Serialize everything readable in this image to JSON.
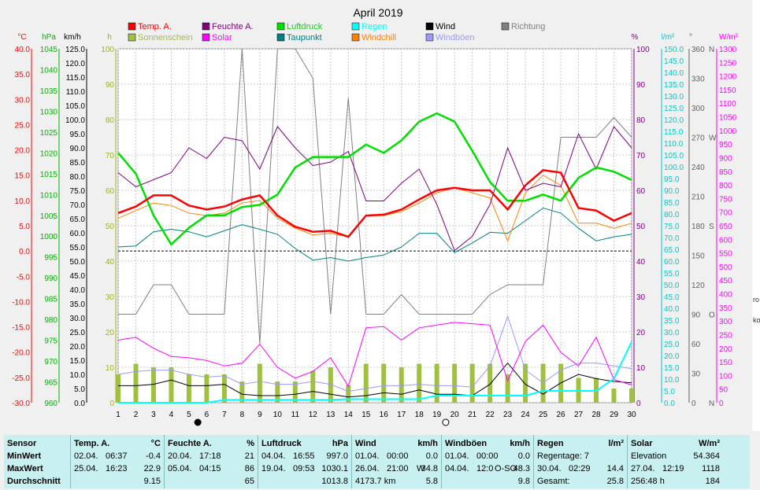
{
  "chart_data": {
    "type": "line",
    "title": "April 2019",
    "x": [
      1,
      2,
      3,
      4,
      5,
      6,
      7,
      8,
      9,
      10,
      11,
      12,
      13,
      14,
      15,
      16,
      17,
      18,
      19,
      20,
      21,
      22,
      23,
      24,
      25,
      26,
      27,
      28,
      29,
      30
    ],
    "xticks": [
      "1",
      "2",
      "3",
      "4",
      "5",
      "6",
      "7",
      "8",
      "9",
      "10",
      "11",
      "12",
      "13",
      "14",
      "15",
      "16",
      "17",
      "18",
      "19",
      "20",
      "21",
      "22",
      "23",
      "24",
      "25",
      "26",
      "27",
      "28",
      "29",
      "30"
    ],
    "moon_markers": [
      {
        "day": 5.5,
        "phase": "new"
      },
      {
        "day": 19.5,
        "phase": "full"
      }
    ],
    "axes": [
      {
        "unit": "°C",
        "color": "#ff0000",
        "range": [
          -30,
          40
        ],
        "ticks": [
          "40.0",
          "35.0",
          "30.0",
          "25.0",
          "20.0",
          "15.0",
          "10.0",
          "5.0",
          "0.0",
          "-5.0",
          "-10.0",
          "-15.0",
          "-20.0",
          "-25.0",
          "-30.0"
        ]
      },
      {
        "unit": "hPa",
        "color": "#00c000",
        "range": [
          960,
          1045
        ],
        "ticks": [
          "1045",
          "1040",
          "1035",
          "1030",
          "1025",
          "1020",
          "1015",
          "1010",
          "1005",
          "1000",
          "995",
          "990",
          "985",
          "980",
          "975",
          "970",
          "965",
          "960"
        ]
      },
      {
        "unit": "km/h",
        "color": "#000000",
        "range": [
          0,
          125
        ],
        "ticks": [
          "125.0",
          "120.0",
          "115.0",
          "110.0",
          "105.0",
          "100.0",
          "95.0",
          "90.0",
          "85.0",
          "80.0",
          "75.0",
          "70.0",
          "65.0",
          "60.0",
          "55.0",
          "50.0",
          "45.0",
          "40.0",
          "35.0",
          "30.0",
          "25.0",
          "20.0",
          "15.0",
          "10.0",
          "5.0",
          "0.0"
        ]
      },
      {
        "unit": "h",
        "color": "#a0b020",
        "range": [
          0,
          100
        ],
        "ticks": [
          "100",
          "90",
          "80",
          "70",
          "60",
          "50",
          "40",
          "30",
          "20",
          "10",
          "0"
        ]
      },
      {
        "unit": "%",
        "color": "#800080",
        "range": [
          0,
          100
        ],
        "ticks": [
          "100",
          "90",
          "80",
          "70",
          "60",
          "50",
          "40",
          "30",
          "20",
          "10",
          "0"
        ]
      },
      {
        "unit": "l/m²",
        "color": "#00e0e0",
        "range": [
          0,
          150
        ],
        "ticks": [
          "150.0",
          "145.0",
          "140.0",
          "135.0",
          "130.0",
          "125.0",
          "120.0",
          "115.0",
          "110.0",
          "105.0",
          "100.0",
          "95.0",
          "90.0",
          "85.0",
          "80.0",
          "75.0",
          "70.0",
          "65.0",
          "60.0",
          "55.0",
          "50.0",
          "45.0",
          "40.0",
          "35.0",
          "30.0",
          "25.0",
          "20.0",
          "15.0",
          "10.0",
          "5.0",
          "0.0"
        ]
      },
      {
        "unit": "°",
        "color": "#606060",
        "range": [
          0,
          360
        ],
        "ticks": [
          "360",
          "330",
          "300",
          "270",
          "240",
          "210",
          "180",
          "150",
          "120",
          "90",
          "60",
          "30",
          "0"
        ],
        "directions": {
          "360": "N",
          "270": "W",
          "180": "S",
          "90": "O",
          "0": "N"
        }
      },
      {
        "unit": "W/m²",
        "color": "#ff00ff",
        "range": [
          0,
          1300
        ],
        "ticks": [
          "1300",
          "1250",
          "1200",
          "1150",
          "1100",
          "1050",
          "1000",
          "950",
          "900",
          "850",
          "800",
          "750",
          "700",
          "650",
          "600",
          "550",
          "500",
          "450",
          "400",
          "350",
          "300",
          "250",
          "200",
          "150",
          "100",
          "50",
          "0"
        ]
      }
    ],
    "legend": [
      {
        "name": "Temp. A.",
        "color": "#ff0000"
      },
      {
        "name": "Feuchte A.",
        "color": "#800080"
      },
      {
        "name": "Luftdruck",
        "color": "#00e000"
      },
      {
        "name": "Regen",
        "color": "#00ffff"
      },
      {
        "name": "Wind",
        "color": "#000000"
      },
      {
        "name": "Richtung",
        "color": "#808080"
      },
      {
        "name": "Sonnenschein",
        "color": "#a0c040"
      },
      {
        "name": "Solar",
        "color": "#ff00ff"
      },
      {
        "name": "Taupunkt",
        "color": "#008080"
      },
      {
        "name": "Windchill",
        "color": "#ff8000"
      },
      {
        "name": "Windböen",
        "color": "#9999ff"
      }
    ],
    "series": [
      {
        "name": "Temp. A.",
        "axis": "°C",
        "values": [
          7.5,
          8.8,
          11.0,
          11.0,
          9.0,
          8.2,
          8.8,
          10.2,
          11.0,
          7.0,
          4.8,
          3.8,
          4.0,
          2.8,
          7.0,
          7.2,
          8.2,
          10.2,
          12.0,
          12.5,
          12.0,
          12.0,
          8.2,
          13.0,
          16.0,
          15.5,
          8.5,
          8.0,
          6.0,
          7.5
        ]
      },
      {
        "name": "Windchill",
        "axis": "°C",
        "values": [
          6.5,
          8.0,
          9.5,
          9.0,
          7.5,
          7.0,
          7.5,
          9.5,
          10.0,
          6.5,
          4.5,
          3.2,
          3.5,
          2.8,
          7.0,
          7.0,
          7.8,
          9.5,
          11.5,
          12.5,
          11.5,
          10.5,
          2.0,
          11.5,
          15.0,
          13.0,
          5.5,
          5.5,
          4.5,
          5.5
        ]
      },
      {
        "name": "Taupunkt",
        "axis": "°C",
        "values": [
          0.8,
          1.0,
          3.8,
          4.3,
          3.8,
          2.8,
          4.0,
          5.2,
          4.3,
          3.3,
          0.5,
          -1.8,
          -1.3,
          -2.0,
          -1.3,
          -0.8,
          0.8,
          3.5,
          3.5,
          -0.3,
          1.6,
          3.7,
          3.5,
          6.0,
          8.5,
          7.5,
          4.5,
          2.0,
          2.8,
          3.3
        ]
      },
      {
        "name": "Feuchte A.",
        "axis": "%",
        "values": [
          65,
          61,
          63,
          65,
          72,
          69,
          75,
          74,
          66,
          78,
          72,
          67,
          68,
          71,
          57,
          57,
          62,
          66,
          56,
          43,
          47,
          56,
          72,
          60,
          62,
          61,
          76,
          66,
          78,
          72
        ]
      },
      {
        "name": "Luftdruck",
        "axis": "hPa",
        "values": [
          1020.0,
          1015.0,
          1005.0,
          998.0,
          1002.0,
          1005.0,
          1005.0,
          1007.0,
          1007.5,
          1010.0,
          1016.5,
          1019.0,
          1019.0,
          1019.0,
          1022.0,
          1020.0,
          1023.0,
          1027.5,
          1029.5,
          1027.5,
          1020.5,
          1013.0,
          1008.5,
          1008.5,
          1010.0,
          1008.5,
          1014.0,
          1016.5,
          1015.5,
          1013.5
        ]
      },
      {
        "name": "Wind",
        "axis": "km/h",
        "values": [
          6.0,
          6.0,
          6.5,
          8.0,
          6.0,
          6.0,
          6.5,
          3.0,
          2.5,
          2.5,
          3.0,
          4.0,
          3.0,
          2.0,
          2.5,
          3.5,
          3.0,
          4.5,
          3.0,
          3.0,
          2.5,
          6.5,
          14.0,
          6.5,
          3.0,
          7.0,
          10.0,
          8.5,
          7.5,
          7.0
        ]
      },
      {
        "name": "Windböen",
        "axis": "km/h",
        "values": [
          10.0,
          11.0,
          11.5,
          11.5,
          10.0,
          9.0,
          9.5,
          6.5,
          7.5,
          6.5,
          6.5,
          7.5,
          6.5,
          4.0,
          5.0,
          6.0,
          6.0,
          6.5,
          6.0,
          6.0,
          5.5,
          13.0,
          30.5,
          11.5,
          7.0,
          11.5,
          14.0,
          14.0,
          13.0,
          12.0
        ]
      },
      {
        "name": "Regen",
        "axis": "l/m²",
        "values": [
          0,
          0,
          0,
          0,
          0,
          0,
          1.2,
          1.2,
          1.2,
          1.2,
          1.2,
          1.2,
          1.2,
          1.5,
          1.5,
          1.5,
          1.5,
          1.5,
          3.0,
          3.0,
          3.0,
          3.0,
          3.0,
          3.0,
          5.0,
          5.0,
          5.0,
          5.0,
          10.2,
          25.8
        ]
      },
      {
        "name": "Solar",
        "axis": "W/m²",
        "values": [
          230,
          240,
          200,
          170,
          165,
          155,
          135,
          145,
          215,
          130,
          90,
          115,
          165,
          60,
          275,
          280,
          230,
          275,
          285,
          295,
          290,
          285,
          80,
          225,
          285,
          185,
          135,
          240,
          85,
          65
        ]
      },
      {
        "name": "Richtung",
        "axis": "°",
        "values": [
          90,
          90,
          120,
          120,
          90,
          90,
          90,
          360,
          60,
          360,
          360,
          330,
          90,
          310,
          90,
          90,
          110,
          90,
          90,
          90,
          90,
          110,
          120,
          120,
          120,
          270,
          270,
          270,
          290,
          270
        ]
      },
      {
        "name": "Sonnenschein",
        "axis": "h",
        "values": [
          8,
          11,
          10,
          10,
          8,
          8,
          8,
          6,
          11,
          6,
          6,
          9,
          10,
          5,
          11,
          11,
          10,
          11,
          11,
          11,
          11,
          11,
          8,
          11,
          11,
          11,
          7,
          7,
          4,
          4
        ]
      }
    ]
  },
  "stats": {
    "sensor": {
      "title": "Sensor",
      "min": "MinWert",
      "max": "MaxWert",
      "avg": "Durchschnitt"
    },
    "temp": {
      "title": "Temp. A.",
      "unit": "°C",
      "min_date": "02.04.",
      "min_time": "06:37",
      "min_val": "-0.4",
      "max_date": "25.04.",
      "max_time": "16:23",
      "max_val": "22.9",
      "avg_val": "9.15"
    },
    "humidity": {
      "title": "Feuchte A.",
      "unit": "%",
      "min_date": "20.04.",
      "min_time": "17:18",
      "min_val": "21",
      "max_date": "05.04.",
      "max_time": "04:15",
      "max_val": "86",
      "avg_val": "65"
    },
    "pressure": {
      "title": "Luftdruck",
      "unit": "hPa",
      "min_date": "04.04.",
      "min_time": "16:55",
      "min_val": "997.0",
      "max_date": "19.04.",
      "max_time": "09:53",
      "max_val": "1030.1",
      "avg_val": "1013.8"
    },
    "wind": {
      "title": "Wind",
      "unit": "km/h",
      "min_date": "01.04.",
      "min_time": "00:00",
      "min_val": "0.0",
      "max_date": "26.04.",
      "max_time": "21:00",
      "max_dir": "W",
      "max_val": "34.8",
      "avg_extra": "4173.7 km",
      "avg_val": "5.8"
    },
    "gusts": {
      "title": "Windböen",
      "unit": "km/h",
      "min_date": "01.04.",
      "min_time": "00:00",
      "min_val": "0.0",
      "max_date": "04.04.",
      "max_time": "12:0",
      "max_dir": "O-SO",
      "max_val": "48.3",
      "avg_val": "9.8"
    },
    "rain": {
      "title": "Regen",
      "unit": "l/m²",
      "days_label": "Regentage: 7",
      "max_date": "30.04.",
      "max_time": "02:29",
      "max_val": "14.4",
      "total_label": "Gesamt:",
      "total_val": "25.8"
    },
    "solar": {
      "title": "Solar",
      "unit": "W/m²",
      "elev_label": "Elevation",
      "elev_val": "54.364",
      "max_date": "27.04.",
      "max_time": "12:19",
      "max_val": "1118",
      "sun_hours": "256:48 h",
      "avg_val": "184"
    }
  },
  "strip": {
    "a": "ro",
    "b": "ko"
  }
}
